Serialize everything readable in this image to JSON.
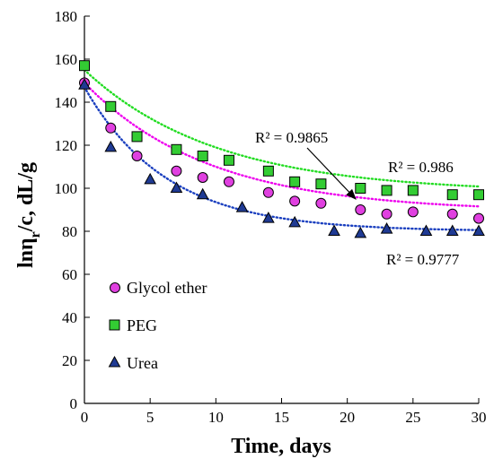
{
  "chart_data": {
    "type": "scatter",
    "xlabel": "Time, days",
    "ylabel_parts": {
      "pre": "ln",
      "eta": "η",
      "sub": "r",
      "post": "/c, dL/g"
    },
    "xlim": [
      0,
      30
    ],
    "ylim": [
      0,
      180
    ],
    "xticks": [
      0,
      5,
      10,
      15,
      20,
      25,
      30
    ],
    "yticks": [
      0,
      20,
      40,
      60,
      80,
      100,
      120,
      140,
      160,
      180
    ],
    "grid": false,
    "legend_position": "lower-left",
    "series": [
      {
        "name": "Glycol ether",
        "marker": "circle",
        "color": "#e040e0",
        "stroke": "#000000",
        "x": [
          0,
          2,
          4,
          7,
          9,
          11,
          14,
          16,
          18,
          21,
          23,
          25,
          28,
          30
        ],
        "y": [
          149,
          128,
          115,
          108,
          105,
          103,
          98,
          94,
          93,
          90,
          88,
          89,
          88,
          86
        ],
        "r2": "R² = 0.9865",
        "fit": {
          "y0": 149,
          "a": 60,
          "k": 0.105
        },
        "fit_color": "#ee00ee"
      },
      {
        "name": "PEG",
        "marker": "square",
        "color": "#33cc33",
        "stroke": "#000000",
        "x": [
          0,
          2,
          4,
          7,
          9,
          11,
          14,
          16,
          18,
          21,
          23,
          25,
          28,
          30
        ],
        "y": [
          157,
          138,
          124,
          118,
          115,
          113,
          108,
          103,
          102,
          100,
          99,
          99,
          97,
          97
        ],
        "r2": "R² = 0.986",
        "fit": {
          "y0": 155,
          "a": 57,
          "k": 0.1
        },
        "fit_color": "#22dd22"
      },
      {
        "name": "Urea",
        "marker": "triangle",
        "color": "#1f3a93",
        "stroke": "#000000",
        "x": [
          0,
          2,
          5,
          7,
          9,
          12,
          14,
          16,
          19,
          21,
          23,
          26,
          28,
          30
        ],
        "y": [
          148,
          119,
          104,
          100,
          97,
          91,
          86,
          84,
          80,
          79,
          81,
          80,
          80,
          80
        ],
        "r2": "R² = 0.9777",
        "fit": {
          "y0": 147,
          "a": 67,
          "k": 0.16
        },
        "fit_color": "#1a3fbf"
      }
    ]
  }
}
